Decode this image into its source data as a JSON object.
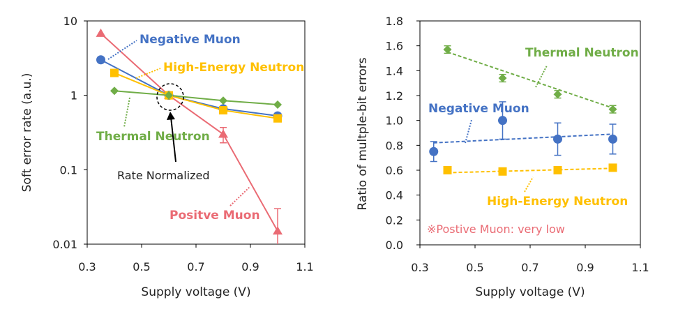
{
  "chart_data": [
    {
      "type": "line",
      "xlabel": "Supply voltage (V)",
      "ylabel": "Soft error rate (a.u.)",
      "xlim": [
        0.3,
        1.1
      ],
      "ylim": [
        0.01,
        10
      ],
      "yscale": "log",
      "xticks": [
        "0.3",
        "0.5",
        "0.7",
        "0.9",
        "1.1"
      ],
      "yticks": [
        "0.01",
        "0.1",
        "1",
        "10"
      ],
      "series": [
        {
          "name": "Positve Muon",
          "color": "#ea6b74",
          "marker": "triangle",
          "x": [
            0.35,
            0.6,
            0.8,
            1.0
          ],
          "y": [
            6.8,
            1.0,
            0.3,
            0.015
          ],
          "err": [
            null,
            null,
            [
              0.23,
              0.37
            ],
            [
              0.01,
              0.03
            ]
          ]
        },
        {
          "name": "Negative Muon",
          "color": "#4472c4",
          "marker": "circle",
          "x": [
            0.35,
            0.6,
            0.8,
            1.0
          ],
          "y": [
            3.0,
            1.0,
            0.66,
            0.53
          ]
        },
        {
          "name": "High-Energy Neutron",
          "color": "#ffc000",
          "marker": "square",
          "x": [
            0.4,
            0.6,
            0.8,
            1.0
          ],
          "y": [
            2.0,
            1.0,
            0.63,
            0.49
          ]
        },
        {
          "name": "Thermal Neutron",
          "color": "#70ad47",
          "marker": "diamond",
          "x": [
            0.4,
            0.6,
            0.8,
            1.0
          ],
          "y": [
            1.15,
            1.0,
            0.85,
            0.75
          ]
        }
      ],
      "annotations": [
        {
          "text": "Negative Muon",
          "color": "#4472c4"
        },
        {
          "text": "High-Energy Neutron",
          "color": "#ffc000"
        },
        {
          "text": "Thermal Neutron",
          "color": "#70ad47"
        },
        {
          "text": "Positve Muon",
          "color": "#ea6b74"
        },
        {
          "text": "Rate Normalized",
          "color": "#222222"
        }
      ]
    },
    {
      "type": "scatter",
      "xlabel": "Supply voltage (V)",
      "ylabel": "Ratio of multple-bit errors",
      "xlim": [
        0.3,
        1.1
      ],
      "ylim": [
        0.0,
        1.8
      ],
      "xticks": [
        "0.3",
        "0.5",
        "0.7",
        "0.9",
        "1.1"
      ],
      "yticks": [
        "0.0",
        "0.2",
        "0.4",
        "0.6",
        "0.8",
        "1.0",
        "1.2",
        "1.4",
        "1.6",
        "1.8"
      ],
      "series": [
        {
          "name": "Thermal Neutron",
          "color": "#70ad47",
          "marker": "diamond",
          "x": [
            0.4,
            0.6,
            0.8,
            1.0
          ],
          "y": [
            1.57,
            1.34,
            1.21,
            1.09
          ],
          "err": [
            0.03,
            0.03,
            0.03,
            0.03
          ],
          "trend": [
            0.4,
            1.55,
            1.0,
            1.1
          ]
        },
        {
          "name": "Negative Muon",
          "color": "#4472c4",
          "marker": "circle",
          "x": [
            0.35,
            0.6,
            0.8,
            1.0
          ],
          "y": [
            0.75,
            1.0,
            0.85,
            0.85
          ],
          "err": [
            0.08,
            0.15,
            0.13,
            0.12
          ],
          "trend": [
            0.35,
            0.82,
            1.0,
            0.89
          ]
        },
        {
          "name": "High-Energy Neutron",
          "color": "#ffc000",
          "marker": "square",
          "x": [
            0.4,
            0.6,
            0.8,
            1.0
          ],
          "y": [
            0.6,
            0.59,
            0.6,
            0.62
          ],
          "trend": [
            0.4,
            0.58,
            1.0,
            0.615
          ]
        }
      ],
      "annotations": [
        {
          "text": "Thermal Neutron",
          "color": "#70ad47"
        },
        {
          "text": "Negative Muon",
          "color": "#4472c4"
        },
        {
          "text": "High-Energy Neutron",
          "color": "#ffc000"
        },
        {
          "text": "※Postive Muon: very low",
          "color": "#ea6b74"
        }
      ]
    }
  ]
}
